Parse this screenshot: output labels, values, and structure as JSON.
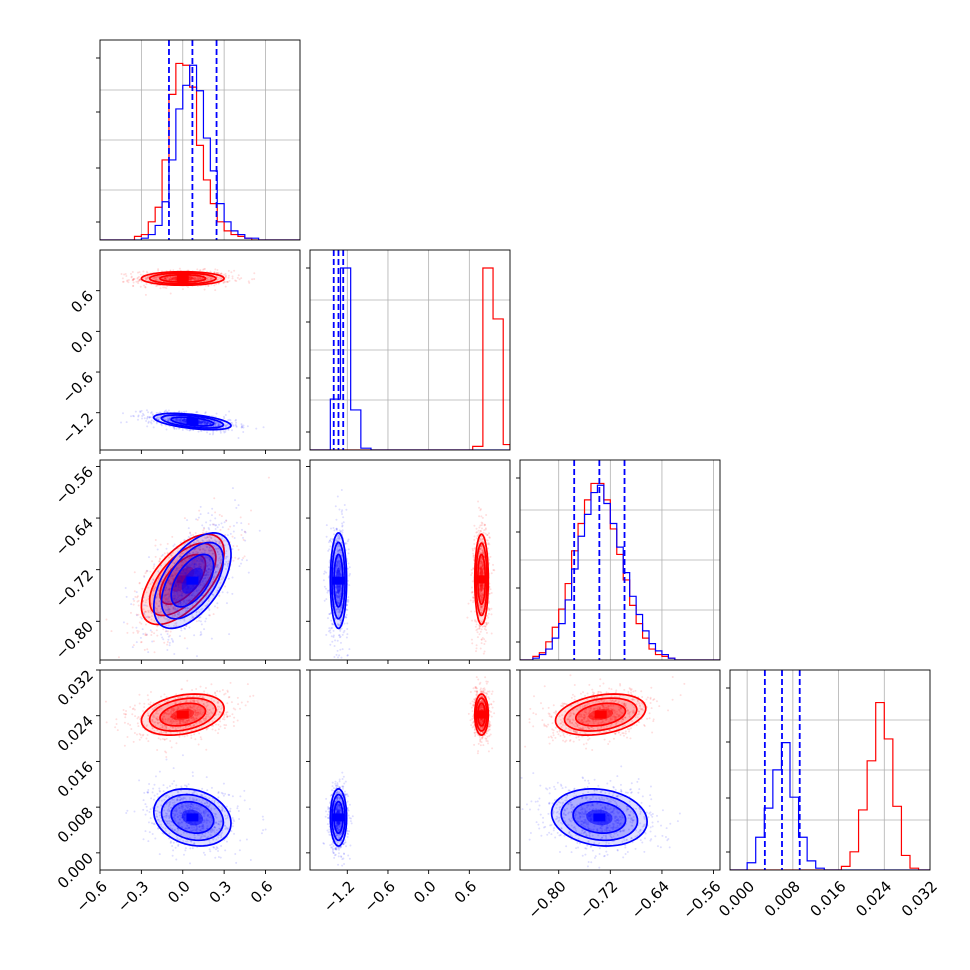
{
  "chart_data": {
    "type": "corner",
    "grid": true,
    "colors": {
      "red": "#ff0000",
      "blue": "#0000ff"
    },
    "parameters": [
      {
        "index": 0,
        "range": [
          -0.6,
          0.85
        ],
        "ticks": [
          -0.6,
          -0.3,
          0.0,
          0.3,
          0.6
        ],
        "tick_labels": [
          "−0.6",
          "−0.3",
          "0.0",
          "0.3",
          "0.6"
        ]
      },
      {
        "index": 1,
        "range": [
          -1.75,
          1.2
        ],
        "ticks": [
          -1.2,
          -0.6,
          0.0,
          0.6
        ],
        "tick_labels": [
          "−1.2",
          "−0.6",
          "0.0",
          "0.6"
        ]
      },
      {
        "index": 2,
        "range": [
          -0.86,
          -0.55
        ],
        "ticks": [
          -0.8,
          -0.72,
          -0.64,
          -0.56
        ],
        "tick_labels": [
          "−0.80",
          "−0.72",
          "−0.64",
          "−0.56"
        ]
      },
      {
        "index": 3,
        "range": [
          -0.003,
          0.032
        ],
        "ticks": [
          0.0,
          0.008,
          0.016,
          0.024,
          0.032
        ],
        "tick_labels": [
          "0.000",
          "0.008",
          "0.016",
          "0.024",
          "0.032"
        ]
      }
    ],
    "series": [
      {
        "color": "red",
        "mean": [
          0.0,
          0.78,
          -0.735,
          0.0242
        ],
        "std": [
          0.15,
          0.05,
          0.035,
          0.0018
        ],
        "corr": {
          "0-2": 0.6,
          "0-3": 0.3,
          "2-3": 0.3
        }
      },
      {
        "color": "blue",
        "mean": [
          0.07,
          -1.33,
          -0.737,
          0.0062
        ],
        "std": [
          0.14,
          0.06,
          0.037,
          0.0025
        ],
        "corr": {
          "0-1": -0.5,
          "0-2": 0.55,
          "0-3": -0.2,
          "2-3": -0.15
        }
      }
    ],
    "quantile_lines": [
      {
        "param": 0,
        "values": [
          -0.1,
          0.07,
          0.245
        ]
      },
      {
        "param": 1,
        "values": [
          -1.4,
          -1.33,
          -1.26
        ]
      },
      {
        "param": 2,
        "values": [
          -0.776,
          -0.737,
          -0.698
        ]
      },
      {
        "param": 3,
        "values": [
          0.0031,
          0.0061,
          0.0092
        ]
      }
    ],
    "histograms": [
      {
        "param": 0,
        "bin_edges": [
          -0.6,
          -0.55,
          -0.5,
          -0.45,
          -0.4,
          -0.35,
          -0.3,
          -0.25,
          -0.2,
          -0.15,
          -0.1,
          -0.05,
          0.0,
          0.05,
          0.1,
          0.15,
          0.2,
          0.25,
          0.3,
          0.35,
          0.4,
          0.45,
          0.5,
          0.55,
          0.6,
          0.65,
          0.7,
          0.75,
          0.8,
          0.85
        ],
        "red": [
          0,
          0,
          0,
          0,
          0,
          2,
          3,
          10,
          18,
          44,
          80,
          97,
          96,
          84,
          52,
          33,
          20,
          10,
          5,
          3,
          2,
          1,
          0,
          0,
          0,
          0,
          0,
          0,
          0
        ],
        "blue": [
          0,
          0,
          0,
          0,
          0,
          0,
          1,
          3,
          8,
          21,
          44,
          72,
          85,
          96,
          82,
          56,
          38,
          20,
          10,
          5,
          3,
          1,
          1,
          0,
          0,
          0,
          0,
          0,
          0
        ]
      },
      {
        "param": 1,
        "bin_edges": [
          -1.75,
          -1.6,
          -1.45,
          -1.3,
          -1.15,
          -1.0,
          -0.85,
          -0.7,
          -0.55,
          -0.4,
          -0.25,
          -0.1,
          0.05,
          0.2,
          0.35,
          0.5,
          0.65,
          0.8,
          0.95,
          1.1,
          1.2
        ],
        "red": [
          0,
          0,
          0,
          0,
          0,
          0,
          0,
          0,
          0,
          0,
          0,
          0,
          0,
          0,
          0,
          0,
          2,
          100,
          72,
          3
        ],
        "blue": [
          0,
          0,
          28,
          100,
          22,
          1,
          0,
          0,
          0,
          0,
          0,
          0,
          0,
          0,
          0,
          0,
          0,
          0,
          0,
          0
        ]
      },
      {
        "param": 2,
        "bin_edges": [
          -0.86,
          -0.85,
          -0.84,
          -0.83,
          -0.82,
          -0.81,
          -0.8,
          -0.79,
          -0.78,
          -0.77,
          -0.76,
          -0.75,
          -0.74,
          -0.73,
          -0.72,
          -0.71,
          -0.7,
          -0.69,
          -0.68,
          -0.67,
          -0.66,
          -0.65,
          -0.64,
          -0.63,
          -0.62,
          -0.61,
          -0.6,
          -0.59,
          -0.58,
          -0.57,
          -0.56,
          -0.55
        ],
        "red": [
          0,
          0,
          2,
          4,
          10,
          18,
          28,
          42,
          60,
          75,
          88,
          97,
          97,
          88,
          72,
          58,
          44,
          30,
          20,
          12,
          6,
          3,
          2,
          1,
          0,
          0,
          0,
          0,
          0,
          0,
          0
        ],
        "blue": [
          0,
          0,
          1,
          3,
          6,
          12,
          20,
          33,
          50,
          68,
          80,
          92,
          96,
          86,
          75,
          62,
          48,
          35,
          25,
          16,
          9,
          5,
          3,
          1,
          0,
          0,
          0,
          0,
          0,
          0,
          0
        ]
      },
      {
        "param": 3,
        "bin_edges": [
          -0.003,
          -0.0015,
          0.0,
          0.0015,
          0.003,
          0.0045,
          0.006,
          0.0075,
          0.009,
          0.0105,
          0.012,
          0.0135,
          0.015,
          0.0165,
          0.018,
          0.0195,
          0.021,
          0.0225,
          0.024,
          0.0255,
          0.027,
          0.0285,
          0.03,
          0.0315,
          0.032
        ],
        "red": [
          0,
          0,
          0,
          0,
          0,
          0,
          0,
          0,
          0,
          0,
          0,
          0,
          0,
          2,
          10,
          33,
          60,
          92,
          72,
          35,
          8,
          1,
          0,
          0
        ],
        "blue": [
          0,
          0,
          4,
          18,
          34,
          55,
          70,
          40,
          18,
          5,
          1,
          0,
          0,
          0,
          0,
          0,
          0,
          0,
          0,
          0,
          0,
          0,
          0,
          0
        ]
      }
    ]
  }
}
